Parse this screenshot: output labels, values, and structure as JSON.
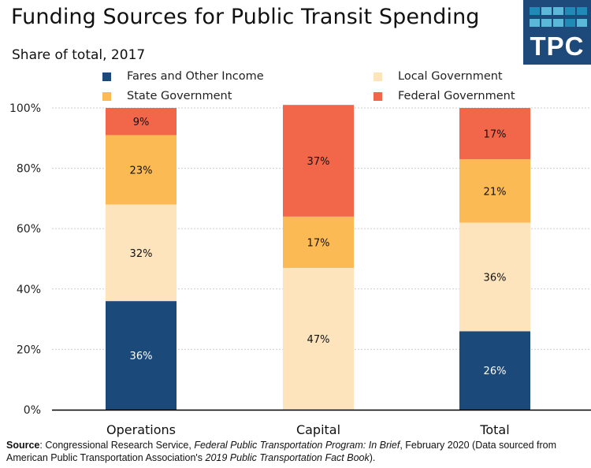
{
  "logo": {
    "text": "TPC",
    "bg_color": "#1d4a7a",
    "square_colors": [
      "#1e8ab5",
      "#5bb8d8",
      "#5bb8d8",
      "#1e8ab5",
      "#1e8ab5",
      "#5bb8d8",
      "#5bb8d8",
      "#5bb8d8",
      "#1e8ab5",
      "#5bb8d8"
    ]
  },
  "source": {
    "label": "Source",
    "text_1": ": Congressional Research Service, ",
    "italic_1": "Federal Public Transportation Program: In Brief",
    "text_2": ", February 2020 (Data sourced from American Public Transportation Association's ",
    "italic_2": "2019 Public Transportation Fact Book",
    "text_3": ")."
  },
  "chart_data": {
    "type": "bar",
    "stacked": true,
    "title": "Funding Sources for Public Transit Spending",
    "subtitle": "Share of total, 2017",
    "xlabel": "",
    "ylabel": "",
    "categories": [
      "Operations",
      "Capital",
      "Total"
    ],
    "ylim": [
      0,
      100
    ],
    "yticks": [
      0,
      20,
      40,
      60,
      80,
      100
    ],
    "ytick_labels": [
      "0%",
      "20%",
      "40%",
      "60%",
      "80%",
      "100%"
    ],
    "grid": true,
    "legend_position": "top",
    "series": [
      {
        "name": "Fares and Other Income",
        "color": "#1b4a7a",
        "label_color": "#ffffff",
        "values": [
          36,
          0,
          26
        ],
        "labels": [
          "36%",
          "",
          "26%"
        ]
      },
      {
        "name": "Local Government",
        "color": "#fde4bd",
        "label_color": "#111111",
        "values": [
          32,
          47,
          36
        ],
        "labels": [
          "32%",
          "47%",
          "36%"
        ]
      },
      {
        "name": "State Government",
        "color": "#fcba55",
        "label_color": "#111111",
        "values": [
          23,
          17,
          21
        ],
        "labels": [
          "23%",
          "17%",
          "21%"
        ]
      },
      {
        "name": "Federal Government",
        "color": "#f26649",
        "label_color": "#111111",
        "values": [
          9,
          37,
          17
        ],
        "labels": [
          "9%",
          "37%",
          "17%"
        ]
      }
    ],
    "legend_order": [
      "Fares and Other Income",
      "Local Government",
      "State Government",
      "Federal Government"
    ]
  }
}
